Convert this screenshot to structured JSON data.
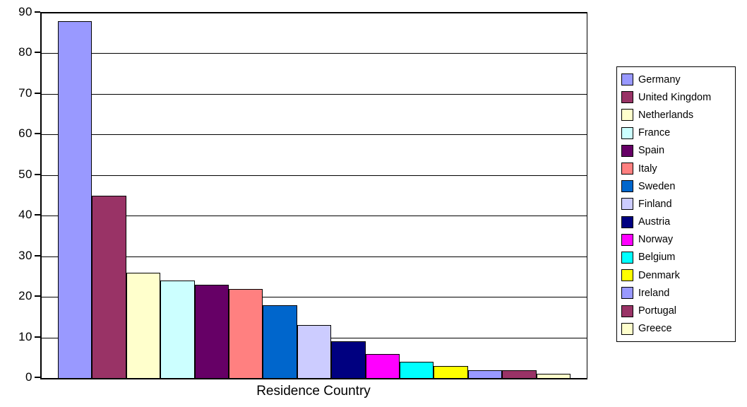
{
  "chart_data": {
    "type": "bar",
    "title": "",
    "xlabel": "Residence Country",
    "ylabel": "",
    "ylim": [
      0,
      90
    ],
    "ytick_interval": 10,
    "yticks": [
      0,
      10,
      20,
      30,
      40,
      50,
      60,
      70,
      80,
      90
    ],
    "grid": true,
    "legend_position": "right",
    "categories": [
      "Germany",
      "United Kingdom",
      "Netherlands",
      "France",
      "Spain",
      "Italy",
      "Sweden",
      "Finland",
      "Austria",
      "Norway",
      "Belgium",
      "Denmark",
      "Ireland",
      "Portugal",
      "Greece"
    ],
    "values": [
      88,
      45,
      26,
      24,
      23,
      22,
      18,
      13,
      9,
      6,
      4,
      3,
      2,
      2,
      1
    ],
    "colors": [
      "#9999FF",
      "#993366",
      "#FFFFCC",
      "#CCFFFF",
      "#660066",
      "#FF8080",
      "#0066CC",
      "#CCCCFF",
      "#000080",
      "#FF00FF",
      "#00FFFF",
      "#FFFF00",
      "#9999FF",
      "#993366",
      "#FFFFCC"
    ],
    "axis_color": "#000000",
    "plot_background": "#FFFFFF"
  }
}
